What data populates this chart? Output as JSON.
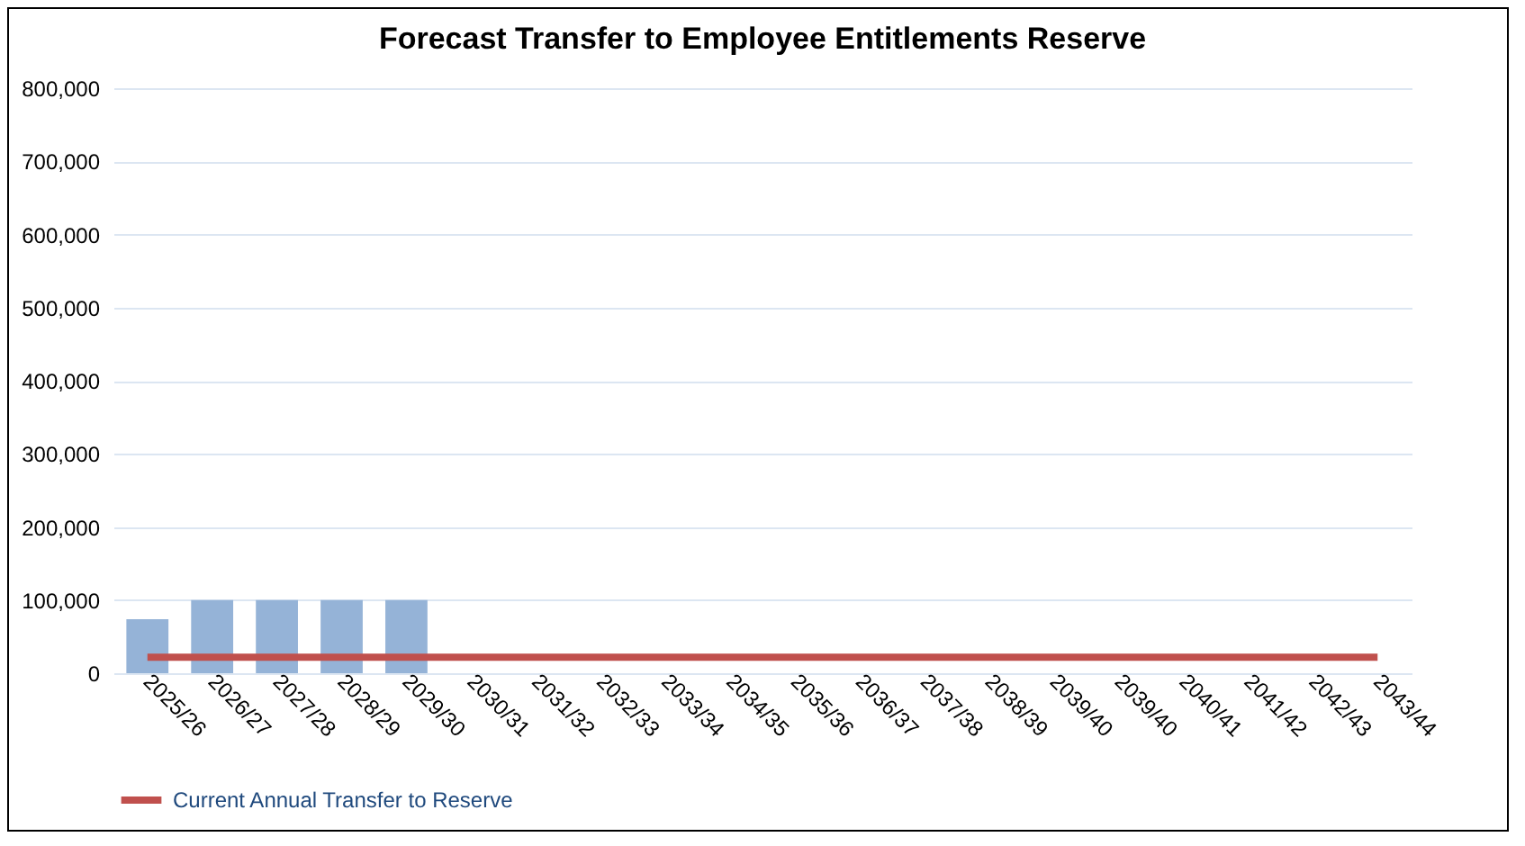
{
  "chart_data": {
    "type": "bar",
    "title": "Forecast Transfer to Employee Entitlements Reserve",
    "categories": [
      "2025/26",
      "2026/27",
      "2027/28",
      "2028/29",
      "2029/30",
      "2030/31",
      "2031/32",
      "2032/33",
      "2033/34",
      "2034/35",
      "2035/36",
      "2036/37",
      "2037/38",
      "2038/39",
      "2039/40",
      "2039/40",
      "2040/41",
      "2041/42",
      "2042/43",
      "2043/44"
    ],
    "series": [
      {
        "color": "#95b3d7",
        "values": [
          74000,
          100000,
          100000,
          100000,
          100000,
          null,
          null,
          null,
          null,
          null,
          null,
          null,
          null,
          null,
          null,
          null,
          null,
          null,
          null,
          null
        ]
      },
      {
        "type": "line",
        "name": "Current Annual Transfer to Reserve",
        "color": "#c0504d",
        "values": [
          22000,
          22000,
          22000,
          22000,
          22000,
          22000,
          22000,
          22000,
          22000,
          22000,
          22000,
          22000,
          22000,
          22000,
          22000,
          22000,
          22000,
          22000,
          22000,
          22000
        ]
      }
    ],
    "ylim": [
      0,
      800000
    ],
    "yticks": [
      0,
      {
        "value": 100000,
        "label": "100,000"
      },
      {
        "value": 200000,
        "label": "200,000"
      },
      {
        "value": 300000,
        "label": "300,000"
      },
      {
        "value": 400000,
        "label": "400,000"
      },
      {
        "value": 500000,
        "label": "500,000"
      },
      {
        "value": 600000,
        "label": "600,000"
      },
      {
        "value": 700000,
        "label": "700,000"
      },
      {
        "value": 800000,
        "label": "800,000"
      }
    ],
    "grid": "y",
    "legend": "bottom",
    "marker": "none"
  }
}
